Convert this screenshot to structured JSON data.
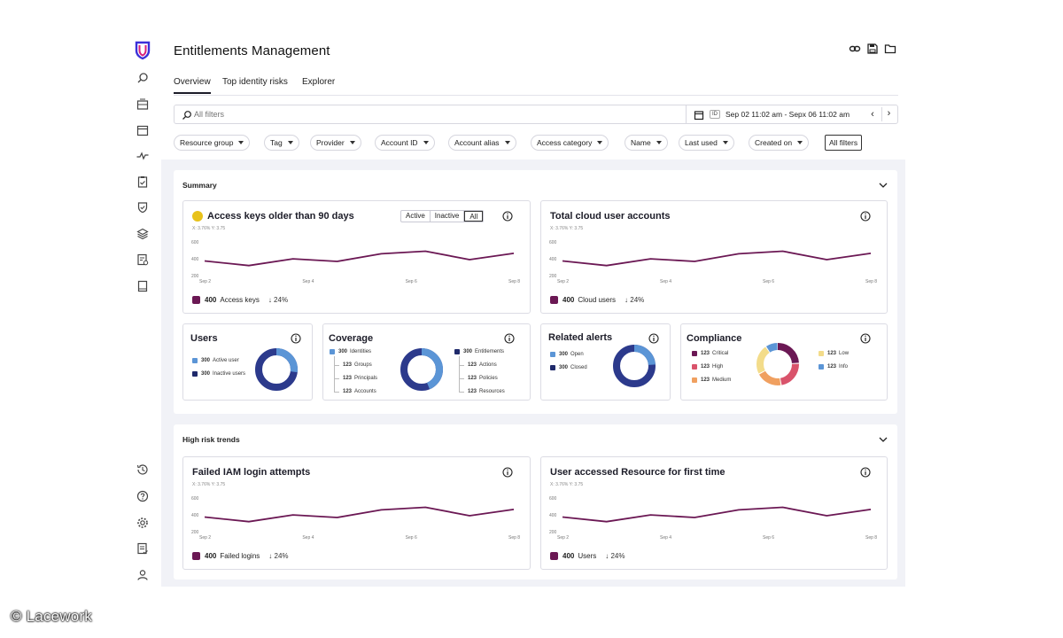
{
  "app": {
    "title": "Entitlements Management"
  },
  "header_icons": [
    "link-icon",
    "save-icon",
    "folder-icon"
  ],
  "tabs": [
    {
      "label": "Overview",
      "active": true
    },
    {
      "label": "Top identity risks",
      "active": false
    },
    {
      "label": "Explorer",
      "active": false
    }
  ],
  "filter": {
    "placeholder": "All filters",
    "date_range": "Sep 02 11:02 am - Sepx 06 11:02 am",
    "tz_badge": "ID"
  },
  "chips": [
    "Resource group",
    "Tag",
    "Provider",
    "Account ID",
    "Account alias",
    "Access category",
    "Name",
    "Last used",
    "Created on"
  ],
  "all_filters_label": "All filters",
  "summary": {
    "title": "Summary",
    "access_keys": {
      "title": "Access keys older than 90 days",
      "toggle": [
        "Active",
        "Inactive",
        "All"
      ],
      "toggle_selected": "All",
      "xy": "X: 3.76%   Y: 3.75",
      "legend_value": "400",
      "legend_label": "Access keys",
      "delta": "↓ 24%"
    },
    "cloud_users": {
      "title": "Total cloud user accounts",
      "xy": "X: 3.76%   Y: 3.75",
      "legend_value": "400",
      "legend_label": "Cloud users",
      "delta": "↓ 24%"
    },
    "users": {
      "title": "Users",
      "items": [
        {
          "value": "300",
          "label": "Active user",
          "color": "#5b95d6"
        },
        {
          "value": "300",
          "label": "Inactive users",
          "color": "#1f2a6b"
        }
      ]
    },
    "coverage": {
      "title": "Coverage",
      "left": [
        {
          "value": "300",
          "label": "Identities",
          "color": "#5b95d6"
        },
        {
          "value": "123",
          "label": "Groups"
        },
        {
          "value": "123",
          "label": "Principals"
        },
        {
          "value": "123",
          "label": "Accounts"
        }
      ],
      "right": [
        {
          "value": "300",
          "label": "Entitlements",
          "color": "#1f2a6b"
        },
        {
          "value": "123",
          "label": "Actions"
        },
        {
          "value": "123",
          "label": "Policies"
        },
        {
          "value": "123",
          "label": "Resources"
        }
      ]
    },
    "alerts": {
      "title": "Related alerts",
      "items": [
        {
          "value": "300",
          "label": "Open",
          "color": "#5b95d6"
        },
        {
          "value": "300",
          "label": "Closed",
          "color": "#1f2a6b"
        }
      ]
    },
    "compliance": {
      "title": "Compliance",
      "left": [
        {
          "value": "123",
          "label": "Critical",
          "color": "#6b1854"
        },
        {
          "value": "123",
          "label": "High",
          "color": "#d9536b"
        },
        {
          "value": "123",
          "label": "Medium",
          "color": "#f0a060"
        }
      ],
      "right": [
        {
          "value": "123",
          "label": "Low",
          "color": "#f3dc8a"
        },
        {
          "value": "123",
          "label": "Info",
          "color": "#5b95d6"
        }
      ]
    }
  },
  "trends": {
    "title": "High risk trends",
    "failed_iam": {
      "title": "Failed IAM login attempts",
      "xy": "X: 3.76%   Y: 3.75",
      "legend_value": "400",
      "legend_label": "Failed logins",
      "delta": "↓ 24%"
    },
    "first_access": {
      "title": "User accessed Resource for first time",
      "xy": "X: 3.76%   Y: 3.75",
      "legend_value": "400",
      "legend_label": "Users",
      "delta": "↓ 24%"
    }
  },
  "line_axis": {
    "y_ticks": [
      "600",
      "400",
      "200"
    ],
    "x_ticks": [
      "Sep 2",
      "Sep 4",
      "Sep 6",
      "Sep 8"
    ]
  },
  "chart_data": {
    "type": "line",
    "x": [
      "Sep 2",
      "Sep 3",
      "Sep 4",
      "Sep 5",
      "Sep 6",
      "Sep 7",
      "Sep 8",
      "Sep 9"
    ],
    "series": [
      {
        "values": [
          395,
          340,
          420,
          390,
          480,
          510,
          410,
          485
        ]
      }
    ],
    "ylim": [
      200,
      600
    ],
    "color": "#6b1854"
  },
  "colors": {
    "accent": "#6b1854",
    "blue": "#5b95d6",
    "navy": "#2c3a8c"
  },
  "watermark": "© Lacework"
}
